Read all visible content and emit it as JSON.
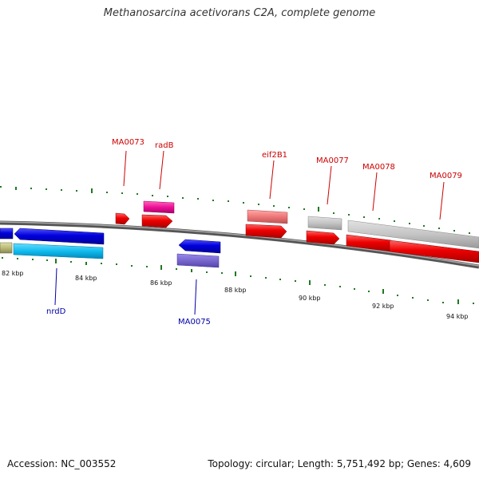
{
  "title": "Methanosarcina acetivorans C2A, complete genome",
  "footer": {
    "accession": "Accession: NC_003552",
    "summary": "Topology: circular; Length: 5,751,492 bp; Genes: 4,609"
  },
  "colors": {
    "backbone": "#777777",
    "tick": "#227722",
    "forward_cds": "#ee0000",
    "reverse_cds": "#0000dd",
    "top_label": "#cc0000",
    "bottom_label": "#0000aa"
  },
  "ticks": [
    "82 kbp",
    "84 kbp",
    "86 kbp",
    "88 kbp",
    "90 kbp",
    "92 kbp",
    "94 kbp"
  ],
  "gene_labels_top": [
    "MA0073",
    "radB",
    "eif2B1",
    "MA0077",
    "MA0078",
    "MA0079"
  ],
  "gene_labels_bottom": [
    "nrdD",
    "MA0075"
  ]
}
